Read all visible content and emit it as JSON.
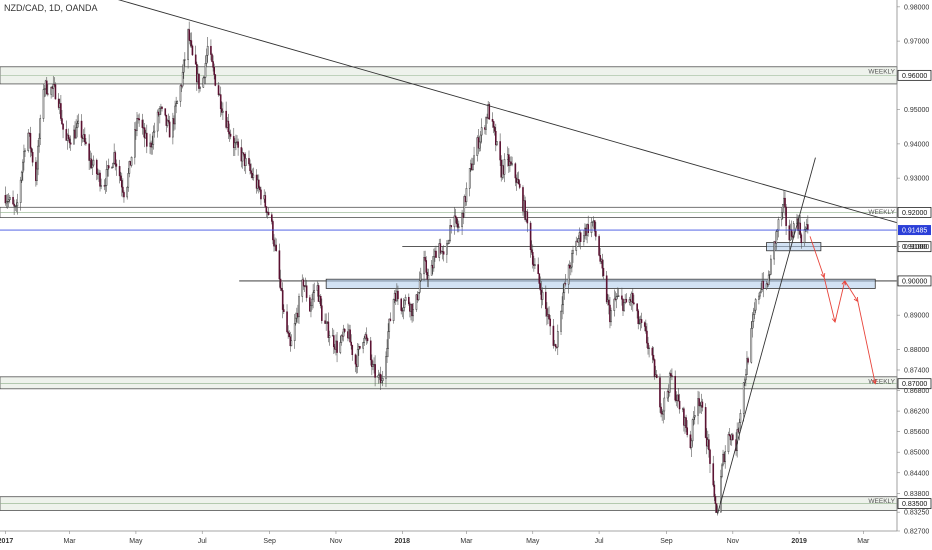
{
  "header": {
    "title": "NZD/CAD, 1D, OANDA"
  },
  "chart_data": {
    "type": "candlestick",
    "symbol": "NZD/CAD",
    "interval": "1D",
    "source": "OANDA",
    "ylim": [
      0.827,
      0.982
    ],
    "y_ticks": [
      "0.98000",
      "0.97000",
      "0.95000",
      "0.94000",
      "0.93000",
      "0.91000",
      "0.89000",
      "0.88000",
      "0.87400",
      "0.86800",
      "0.86200",
      "0.85600",
      "0.85000",
      "0.84400",
      "0.83800",
      "0.83250",
      "0.82700"
    ],
    "y_tick_values": [
      0.98,
      0.97,
      0.95,
      0.94,
      0.93,
      0.91,
      0.89,
      0.88,
      0.874,
      0.868,
      0.862,
      0.856,
      0.85,
      0.844,
      0.838,
      0.8325,
      0.827
    ],
    "x_ticks": [
      {
        "label": "2017",
        "t": 0,
        "bold": true
      },
      {
        "label": "Mar",
        "t": 59,
        "bold": false
      },
      {
        "label": "May",
        "t": 120,
        "bold": false
      },
      {
        "label": "Jul",
        "t": 181,
        "bold": false
      },
      {
        "label": "Sep",
        "t": 243,
        "bold": false
      },
      {
        "label": "Nov",
        "t": 304,
        "bold": false
      },
      {
        "label": "2018",
        "t": 365,
        "bold": true
      },
      {
        "label": "Mar",
        "t": 424,
        "bold": false
      },
      {
        "label": "May",
        "t": 485,
        "bold": false
      },
      {
        "label": "Jul",
        "t": 546,
        "bold": false
      },
      {
        "label": "Sep",
        "t": 608,
        "bold": false
      },
      {
        "label": "Nov",
        "t": 669,
        "bold": false
      },
      {
        "label": "2019",
        "t": 730,
        "bold": true
      },
      {
        "label": "Mar",
        "t": 789,
        "bold": false
      }
    ],
    "x_range_days": [
      -5,
      820
    ],
    "price_path": [
      [
        0,
        0.925
      ],
      [
        10,
        0.92
      ],
      [
        20,
        0.945
      ],
      [
        28,
        0.93
      ],
      [
        35,
        0.957
      ],
      [
        48,
        0.955
      ],
      [
        55,
        0.94
      ],
      [
        68,
        0.945
      ],
      [
        78,
        0.935
      ],
      [
        90,
        0.928
      ],
      [
        100,
        0.937
      ],
      [
        110,
        0.925
      ],
      [
        122,
        0.948
      ],
      [
        132,
        0.938
      ],
      [
        142,
        0.95
      ],
      [
        152,
        0.943
      ],
      [
        162,
        0.958
      ],
      [
        168,
        0.972
      ],
      [
        172,
        0.965
      ],
      [
        180,
        0.955
      ],
      [
        186,
        0.968
      ],
      [
        192,
        0.96
      ],
      [
        200,
        0.95
      ],
      [
        210,
        0.94
      ],
      [
        220,
        0.935
      ],
      [
        228,
        0.93
      ],
      [
        236,
        0.925
      ],
      [
        244,
        0.918
      ],
      [
        250,
        0.905
      ],
      [
        256,
        0.89
      ],
      [
        262,
        0.88
      ],
      [
        268,
        0.89
      ],
      [
        274,
        0.9
      ],
      [
        280,
        0.892
      ],
      [
        286,
        0.9
      ],
      [
        292,
        0.888
      ],
      [
        298,
        0.885
      ],
      [
        306,
        0.88
      ],
      [
        314,
        0.886
      ],
      [
        322,
        0.876
      ],
      [
        330,
        0.885
      ],
      [
        338,
        0.874
      ],
      [
        346,
        0.87
      ],
      [
        352,
        0.885
      ],
      [
        358,
        0.897
      ],
      [
        364,
        0.893
      ],
      [
        370,
        0.895
      ],
      [
        376,
        0.89
      ],
      [
        384,
        0.906
      ],
      [
        390,
        0.9
      ],
      [
        398,
        0.912
      ],
      [
        404,
        0.905
      ],
      [
        410,
        0.918
      ],
      [
        418,
        0.915
      ],
      [
        426,
        0.93
      ],
      [
        434,
        0.94
      ],
      [
        440,
        0.945
      ],
      [
        444,
        0.95
      ],
      [
        450,
        0.942
      ],
      [
        456,
        0.932
      ],
      [
        462,
        0.935
      ],
      [
        470,
        0.93
      ],
      [
        478,
        0.92
      ],
      [
        486,
        0.905
      ],
      [
        492,
        0.898
      ],
      [
        500,
        0.888
      ],
      [
        506,
        0.88
      ],
      [
        512,
        0.895
      ],
      [
        518,
        0.903
      ],
      [
        526,
        0.912
      ],
      [
        534,
        0.915
      ],
      [
        540,
        0.917
      ],
      [
        544,
        0.912
      ],
      [
        550,
        0.9
      ],
      [
        556,
        0.89
      ],
      [
        562,
        0.895
      ],
      [
        570,
        0.893
      ],
      [
        576,
        0.895
      ],
      [
        582,
        0.888
      ],
      [
        588,
        0.885
      ],
      [
        596,
        0.875
      ],
      [
        604,
        0.862
      ],
      [
        612,
        0.872
      ],
      [
        618,
        0.865
      ],
      [
        624,
        0.86
      ],
      [
        630,
        0.852
      ],
      [
        636,
        0.868
      ],
      [
        642,
        0.86
      ],
      [
        648,
        0.848
      ],
      [
        652,
        0.835
      ],
      [
        655,
        0.833
      ],
      [
        660,
        0.848
      ],
      [
        666,
        0.856
      ],
      [
        672,
        0.852
      ],
      [
        678,
        0.868
      ],
      [
        684,
        0.88
      ],
      [
        690,
        0.893
      ],
      [
        696,
        0.9
      ],
      [
        700,
        0.897
      ],
      [
        704,
        0.905
      ],
      [
        708,
        0.912
      ],
      [
        712,
        0.918
      ],
      [
        716,
        0.922
      ],
      [
        720,
        0.912
      ],
      [
        724,
        0.915
      ],
      [
        728,
        0.918
      ],
      [
        732,
        0.913
      ],
      [
        736,
        0.915
      ],
      [
        738,
        0.9148
      ]
    ],
    "last_price": "0.91485",
    "last_price_value": 0.91485,
    "annotations": {
      "horizontal_zones": [
        {
          "label": "WEEKLY",
          "price_label": "0.96000",
          "price": 0.96,
          "band": [
            0.9575,
            0.9625
          ],
          "bg": true
        },
        {
          "label": "WEEKLY",
          "price_label": "0.92000",
          "price": 0.92,
          "band": [
            0.9185,
            0.9215
          ],
          "bg": false
        },
        {
          "label": "WEEKLY",
          "price_label": "0.87000",
          "price": 0.87,
          "band": [
            0.8685,
            0.872
          ],
          "bg": true
        },
        {
          "label": "WEEKLY",
          "price_label": "0.83500",
          "price": 0.835,
          "band": [
            0.833,
            0.837
          ],
          "bg": true
        }
      ],
      "key_levels": [
        {
          "price_label": "0.91000",
          "price": 0.91,
          "t_start": 365
        },
        {
          "price_label": "0.90000",
          "price": 0.9,
          "t_start": 215
        }
      ],
      "blue_boxes": [
        {
          "t_start": 295,
          "t_end": 800,
          "top": 0.9005,
          "bottom": 0.8978
        },
        {
          "t_start": 700,
          "t_end": 750,
          "top": 0.9112,
          "bottom": 0.9088
        }
      ],
      "trend_lines": [
        {
          "from": [
            -5,
            0.992
          ],
          "to": [
            820,
            0.917
          ]
        },
        {
          "from": [
            655,
            0.832
          ],
          "to": [
            745,
            0.936
          ]
        }
      ],
      "forecast_path": [
        [
          740,
          0.913
        ],
        [
          753,
          0.901
        ],
        [
          763,
          0.888
        ],
        [
          772,
          0.9
        ],
        [
          784,
          0.894
        ],
        [
          800,
          0.87
        ]
      ]
    }
  }
}
